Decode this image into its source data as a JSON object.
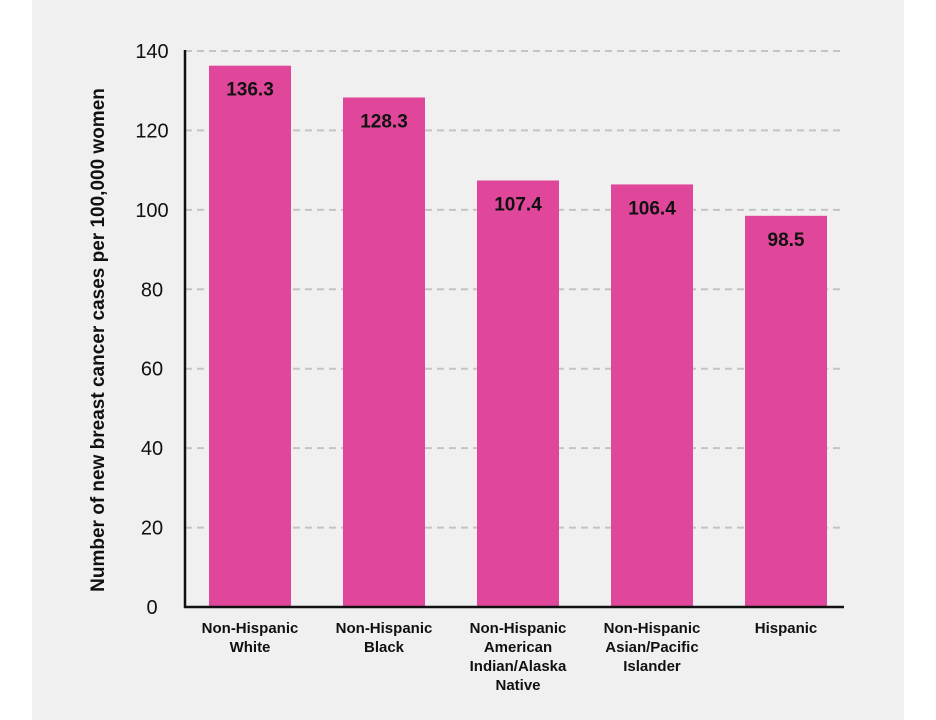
{
  "chart_data": {
    "type": "bar",
    "title": "",
    "xlabel": "",
    "ylabel": "Number of new breast cancer cases per 100,000 women",
    "categories": [
      [
        "Non-Hispanic",
        "White"
      ],
      [
        "Non-Hispanic",
        "Black"
      ],
      [
        "Non-Hispanic",
        "American",
        "Indian/Alaska",
        "Native"
      ],
      [
        "Non-Hispanic",
        "Asian/Pacific",
        "Islander"
      ],
      [
        "Hispanic"
      ]
    ],
    "values": [
      136.3,
      128.3,
      107.4,
      106.4,
      98.5
    ],
    "value_labels": [
      "136.3",
      "128.3",
      "107.4",
      "106.4",
      "98.5"
    ],
    "ylim": [
      0,
      140
    ],
    "yticks": [
      0,
      20,
      40,
      60,
      80,
      100,
      120,
      140
    ],
    "grid": true,
    "grid_style": "dashed",
    "colors": {
      "bar": "#e0479a",
      "grid": "#c4c4c4",
      "axis": "#111111",
      "panel_background": "#f0f0f0"
    }
  }
}
